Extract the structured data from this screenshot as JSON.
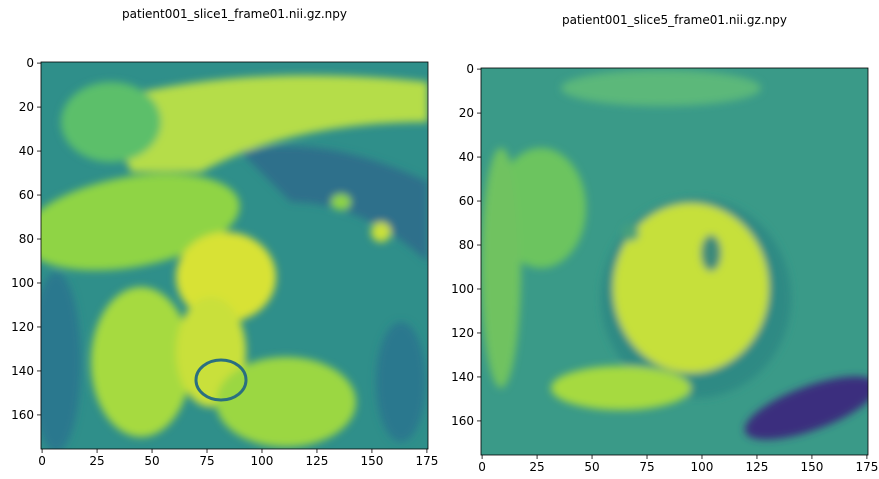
{
  "chart_data": [
    {
      "type": "image",
      "title": "patient001_slice1_frame01.nii.gz.npy",
      "xlim": [
        -0.5,
        175.5
      ],
      "ylim": [
        175.5,
        -0.5
      ],
      "xticks": [
        0,
        25,
        50,
        75,
        100,
        125,
        150,
        175
      ],
      "yticks": [
        0,
        20,
        40,
        60,
        80,
        100,
        120,
        140,
        160
      ]
    },
    {
      "type": "image",
      "title": "patient001_slice5_frame01.nii.gz.npy",
      "xlim": [
        -0.5,
        175.5
      ],
      "ylim": [
        175.5,
        -0.5
      ],
      "xticks": [
        0,
        25,
        50,
        75,
        100,
        125,
        150,
        175
      ],
      "yticks": [
        0,
        20,
        40,
        60,
        80,
        100,
        120,
        140,
        160
      ]
    }
  ]
}
